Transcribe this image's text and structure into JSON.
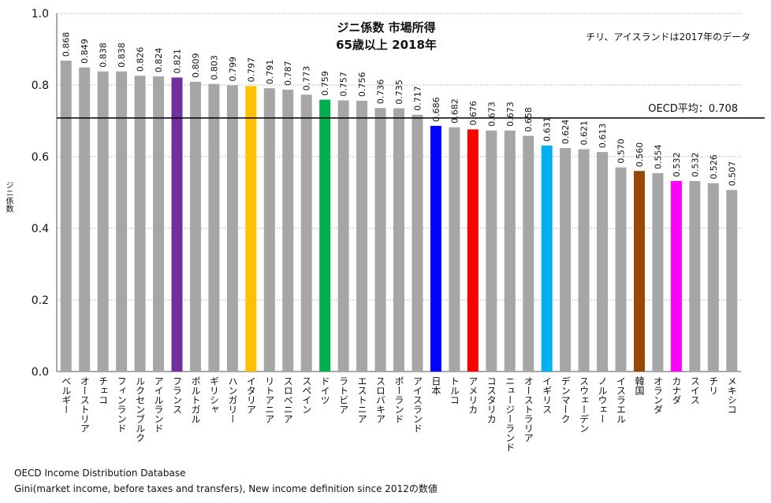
{
  "chart_data": {
    "type": "bar",
    "title": "ジニ係数 市場所得",
    "subtitle": "65歳以上 2018年",
    "note": "チリ、アイスランドは2017年のデータ",
    "ylabel": "ジニ係数",
    "xlabel": "",
    "ylim": [
      0.0,
      1.0
    ],
    "yticks": [
      "0.0",
      "0.2",
      "0.4",
      "0.6",
      "0.8",
      "1.0"
    ],
    "grid": true,
    "categories": [
      "ベルギー",
      "オーストリア",
      "チェコ",
      "フィンランド",
      "ルクセンブルク",
      "アイルランド",
      "フランス",
      "ポルトガル",
      "ギリシャ",
      "ハンガリー",
      "イタリア",
      "リトアニア",
      "スロベニア",
      "スペイン",
      "ドイツ",
      "ラトビア",
      "エストニア",
      "スロバキア",
      "ポーランド",
      "アイスランド",
      "日本",
      "トルコ",
      "アメリカ",
      "コスタリカ",
      "ニュージーランド",
      "オーストラリア",
      "イギリス",
      "デンマーク",
      "スウェーデン",
      "ノルウェー",
      "イスラエル",
      "韓国",
      "オランダ",
      "カナダ",
      "スイス",
      "チリ",
      "メキシコ"
    ],
    "values": [
      0.868,
      0.849,
      0.838,
      0.838,
      0.826,
      0.824,
      0.821,
      0.809,
      0.803,
      0.799,
      0.797,
      0.791,
      0.787,
      0.773,
      0.759,
      0.757,
      0.756,
      0.736,
      0.735,
      0.717,
      0.686,
      0.682,
      0.676,
      0.673,
      0.673,
      0.658,
      0.631,
      0.624,
      0.621,
      0.613,
      0.57,
      0.56,
      0.554,
      0.532,
      0.532,
      0.526,
      0.507
    ],
    "value_labels": [
      "0.868",
      "0.849",
      "0.838",
      "0.838",
      "0.826",
      "0.824",
      "0.821",
      "0.809",
      "0.803",
      "0.799",
      "0.797",
      "0.791",
      "0.787",
      "0.773",
      "0.759",
      "0.757",
      "0.756",
      "0.736",
      "0.735",
      "0.717",
      "0.686",
      "0.682",
      "0.676",
      "0.673",
      "0.673",
      "0.658",
      "0.631",
      "0.624",
      "0.621",
      "0.613",
      "0.570",
      "0.560",
      "0.554",
      "0.532",
      "0.532",
      "0.526",
      "0.507"
    ],
    "default_color": "#a6a6a6",
    "highlight_colors": {
      "フランス": "#7030a0",
      "イタリア": "#ffc000",
      "ドイツ": "#00b050",
      "日本": "#0000ff",
      "アメリカ": "#ff0000",
      "イギリス": "#00b0f0",
      "韓国": "#974706",
      "カナダ": "#ff00ff"
    },
    "reference_line": {
      "value": 0.708,
      "label": "OECD平均：0.708"
    }
  },
  "source": {
    "line1": "OECD Income Distribution Database",
    "line2": "Gini(market income, before taxes and transfers), New income definition since 2012の数値"
  }
}
